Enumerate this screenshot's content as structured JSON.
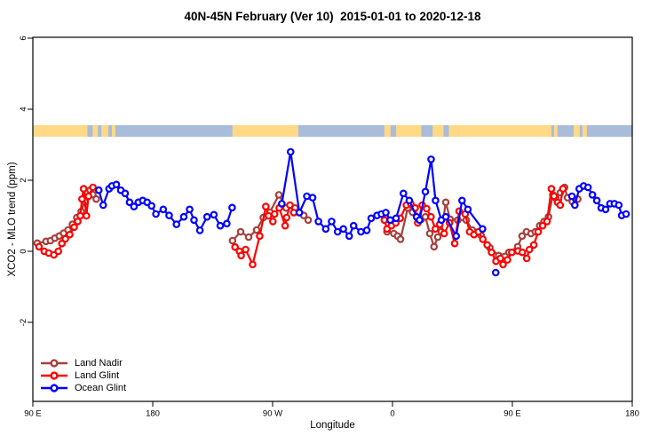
{
  "chart_data": {
    "type": "line",
    "title": "40N-45N February (Ver 10)  2015-01-01 to 2020-12-18",
    "xlabel": "Longitude",
    "ylabel": "XCO2 - MLO trend (ppm)",
    "x_axis": {
      "range_deg": [
        90,
        540
      ],
      "note": "longitude axis wraps eastward starting at 90E",
      "ticks": [
        {
          "pos": 90,
          "label": "90 E"
        },
        {
          "pos": 180,
          "label": "180"
        },
        {
          "pos": 270,
          "label": "90 W"
        },
        {
          "pos": 360,
          "label": "0"
        },
        {
          "pos": 450,
          "label": "90 E"
        },
        {
          "pos": 540,
          "label": "180"
        }
      ]
    },
    "y_axis": {
      "range": [
        -4.2,
        6.0
      ],
      "ticks": [
        {
          "pos": -2,
          "label": "-2"
        },
        {
          "pos": 0,
          "label": "0"
        },
        {
          "pos": 2,
          "label": "2"
        },
        {
          "pos": 4,
          "label": "4"
        },
        {
          "pos": 6,
          "label": "6"
        }
      ]
    },
    "land_ocean_band": {
      "value_center": 3.35,
      "ocean_color": "#A9BCD9",
      "land_color": "#FFD985",
      "land_segments_deg": [
        [
          90,
          131
        ],
        [
          134.9,
          138.8
        ],
        [
          141.5,
          146.7
        ],
        [
          149.4,
          152.0
        ],
        [
          239.8,
          289.3
        ],
        [
          353.9,
          358.5
        ],
        [
          362.7,
          381.6
        ],
        [
          390.1,
          398.3
        ],
        [
          402.3,
          479.3
        ],
        [
          481.3,
          483.9
        ],
        [
          496.0,
          500.6
        ],
        [
          502.6,
          505.9
        ]
      ]
    },
    "series": [
      {
        "name": "Land Nadir",
        "color": "#A5403C",
        "segments": [
          [
            [
              93.3,
              0.23
            ],
            [
              99.9,
              0.28
            ],
            [
              103.2,
              0.3
            ],
            [
              106.5,
              0.37
            ],
            [
              109.8,
              0.43
            ],
            [
              113.1,
              0.51
            ],
            [
              116.4,
              0.6
            ],
            [
              119.7,
              0.76
            ],
            [
              123.0,
              0.95
            ],
            [
              126.3,
              1.12
            ],
            [
              129.0,
              1.4
            ],
            [
              131.0,
              1.65
            ],
            [
              133.0,
              1.72
            ],
            [
              135.0,
              1.6
            ],
            [
              137.6,
              1.47
            ]
          ],
          [
            [
              239.9,
              0.3
            ],
            [
              246.0,
              0.55
            ],
            [
              252.0,
              0.4
            ],
            [
              258.0,
              0.6
            ],
            [
              263.0,
              0.95
            ],
            [
              268.0,
              1.1
            ],
            [
              274.7,
              1.59
            ],
            [
              280.2,
              1.22
            ],
            [
              286.8,
              1.22
            ],
            [
              293.4,
              1.01
            ],
            [
              296.7,
              0.88
            ]
          ],
          [
            [
              355.9,
              0.55
            ],
            [
              361.0,
              0.5
            ],
            [
              363.8,
              0.43
            ],
            [
              366.0,
              0.34
            ],
            [
              371.5,
              1.22
            ],
            [
              375.0,
              1.1
            ],
            [
              378.4,
              0.95
            ],
            [
              381.6,
              0.9
            ],
            [
              384.7,
              0.97
            ],
            [
              388.0,
              0.5
            ],
            [
              391.2,
              0.13
            ],
            [
              394.0,
              0.4
            ],
            [
              396.7,
              0.55
            ],
            [
              400.0,
              1.38
            ],
            [
              403.3,
              0.9
            ],
            [
              409.0,
              0.88
            ],
            [
              415.4,
              0.88
            ],
            [
              419.9,
              0.6
            ],
            [
              426.5,
              0.45
            ],
            [
              433.1,
              0.1
            ],
            [
              439.7,
              -0.12
            ],
            [
              447.4,
              -0.03
            ],
            [
              454.0,
              0.13
            ],
            [
              457.3,
              0.43
            ],
            [
              460.6,
              0.55
            ],
            [
              464.0,
              0.5
            ],
            [
              467.2,
              0.55
            ],
            [
              470.5,
              0.72
            ],
            [
              473.8,
              0.84
            ],
            [
              477.1,
              0.97
            ],
            [
              480.4,
              1.59
            ],
            [
              482.6,
              1.5
            ],
            [
              486.0,
              1.65
            ],
            [
              489.2,
              1.8
            ],
            [
              491.4,
              1.51
            ],
            [
              495.0,
              1.4
            ],
            [
              499.1,
              1.47
            ]
          ]
        ],
        "isolated_points": []
      },
      {
        "name": "Land Glint",
        "color": "#FF0000",
        "segments": [
          [
            [
              94.6,
              0.13
            ],
            [
              98.6,
              0.0
            ],
            [
              101.9,
              -0.05
            ],
            [
              105.8,
              -0.1
            ],
            [
              109.1,
              0.0
            ],
            [
              111.8,
              0.22
            ],
            [
              114.4,
              0.35
            ],
            [
              117.7,
              0.47
            ],
            [
              121.0,
              0.68
            ],
            [
              123.7,
              0.84
            ],
            [
              125.6,
              1.0
            ],
            [
              126.9,
              1.47
            ],
            [
              128.1,
              1.76
            ],
            [
              130.2,
              1.0
            ],
            [
              131.8,
              1.55
            ],
            [
              135.1,
              1.8
            ]
          ],
          [
            [
              241.8,
              0.12
            ],
            [
              245.1,
              0.0
            ],
            [
              246.4,
              -0.12
            ],
            [
              249.7,
              0.05
            ],
            [
              255.0,
              -0.37
            ],
            [
              260.3,
              0.43
            ],
            [
              264.9,
              1.26
            ],
            [
              266.9,
              1.0
            ],
            [
              270.2,
              0.84
            ],
            [
              271.5,
              1.05
            ],
            [
              275.0,
              1.22
            ],
            [
              279.4,
              0.72
            ],
            [
              280.5,
              0.95
            ],
            [
              283.0,
              1.3
            ],
            [
              285.9,
              1.09
            ]
          ],
          [
            [
              353.9,
              0.88
            ],
            [
              355.9,
              0.63
            ],
            [
              359.2,
              0.72
            ],
            [
              362.5,
              0.8
            ],
            [
              365.8,
              0.93
            ],
            [
              370.4,
              1.3
            ],
            [
              373.7,
              1.34
            ],
            [
              377.0,
              1.22
            ],
            [
              379.0,
              0.8
            ],
            [
              382.3,
              1.3
            ],
            [
              385.6,
              1.2
            ],
            [
              388.9,
              0.97
            ],
            [
              392.2,
              0.63
            ],
            [
              395.5,
              0.76
            ],
            [
              398.8,
              0.5
            ],
            [
              402.8,
              0.8
            ],
            [
              406.7,
              0.22
            ],
            [
              410.0,
              1.13
            ],
            [
              414.6,
              1.05
            ],
            [
              417.9,
              0.55
            ],
            [
              421.2,
              0.47
            ],
            [
              424.5,
              0.55
            ],
            [
              427.8,
              0.34
            ],
            [
              431.1,
              0.18
            ],
            [
              434.4,
              -0.03
            ],
            [
              437.7,
              -0.28
            ],
            [
              441.0,
              -0.2
            ],
            [
              443.0,
              -0.37
            ],
            [
              446.3,
              -0.24
            ],
            [
              449.6,
              -0.03
            ],
            [
              454.2,
              0.01
            ],
            [
              457.5,
              -0.03
            ],
            [
              460.8,
              -0.2
            ],
            [
              462.8,
              0.05
            ],
            [
              466.1,
              0.18
            ],
            [
              469.4,
              0.55
            ],
            [
              472.7,
              0.72
            ],
            [
              476.0,
              0.84
            ],
            [
              479.3,
              1.76
            ],
            [
              481.3,
              1.55
            ],
            [
              483.9,
              1.38
            ],
            [
              485.9,
              1.3
            ],
            [
              487.9,
              1.76
            ]
          ]
        ],
        "isolated_points": []
      },
      {
        "name": "Ocean Glint",
        "color": "#0000FF",
        "segments": [
          [
            [
              139.5,
              1.72
            ],
            [
              142.8,
              1.3
            ],
            [
              147.2,
              1.76
            ],
            [
              149.4,
              1.84
            ],
            [
              152.7,
              1.88
            ],
            [
              156.0,
              1.72
            ],
            [
              159.3,
              1.63
            ],
            [
              162.6,
              1.38
            ],
            [
              165.9,
              1.26
            ],
            [
              169.2,
              1.38
            ],
            [
              172.5,
              1.43
            ],
            [
              175.8,
              1.38
            ],
            [
              179.1,
              1.28
            ],
            [
              182.4,
              1.05
            ],
            [
              187.9,
              1.18
            ],
            [
              192.3,
              1.01
            ],
            [
              197.8,
              0.76
            ],
            [
              203.3,
              0.97
            ],
            [
              207.7,
              1.18
            ],
            [
              211.0,
              0.88
            ],
            [
              215.4,
              0.59
            ],
            [
              220.8,
              0.97
            ],
            [
              225.9,
              1.03
            ],
            [
              230.7,
              0.72
            ],
            [
              235.6,
              0.78
            ],
            [
              239.6,
              1.23
            ]
          ],
          [
            [
              276.9,
              1.34
            ],
            [
              283.5,
              2.8
            ],
            [
              290.1,
              1.09
            ],
            [
              295.7,
              1.55
            ],
            [
              300.0,
              1.51
            ],
            [
              304.4,
              0.84
            ],
            [
              309.9,
              0.63
            ],
            [
              314.3,
              0.84
            ],
            [
              318.8,
              0.55
            ],
            [
              323.1,
              0.63
            ],
            [
              327.5,
              0.43
            ],
            [
              330.8,
              0.72
            ],
            [
              336.3,
              0.55
            ],
            [
              340.7,
              0.59
            ],
            [
              344.0,
              0.93
            ],
            [
              348.4,
              1.01
            ],
            [
              351.7,
              1.05
            ],
            [
              355.0,
              1.09
            ],
            [
              358.3,
              0.88
            ],
            [
              362.7,
              0.93
            ],
            [
              368.2,
              1.63
            ],
            [
              372.6,
              1.43
            ],
            [
              378.1,
              0.97
            ],
            [
              380.3,
              0.88
            ],
            [
              384.7,
              1.68
            ],
            [
              389.0,
              2.59
            ],
            [
              392.3,
              1.43
            ],
            [
              396.7,
              0.88
            ],
            [
              400.0,
              0.97
            ],
            [
              407.8,
              0.43
            ],
            [
              412.2,
              1.43
            ],
            [
              416.6,
              1.18
            ],
            [
              427.6,
              0.63
            ]
          ],
          [
            [
              494.7,
              1.55
            ],
            [
              496.9,
              1.3
            ],
            [
              500.2,
              1.76
            ],
            [
              503.5,
              1.84
            ],
            [
              506.8,
              1.8
            ],
            [
              510.1,
              1.59
            ],
            [
              513.4,
              1.43
            ],
            [
              516.7,
              1.22
            ],
            [
              520.0,
              1.18
            ],
            [
              523.3,
              1.34
            ],
            [
              526.6,
              1.34
            ],
            [
              529.9,
              1.3
            ],
            [
              532.1,
              1.01
            ],
            [
              535.4,
              1.05
            ]
          ]
        ],
        "isolated_points": [
          [
            437.5,
            -0.6
          ]
        ]
      }
    ]
  },
  "legend": {
    "items": [
      {
        "label": "Land Nadir",
        "color": "#A5403C"
      },
      {
        "label": "Land Glint",
        "color": "#FF0000"
      },
      {
        "label": "Ocean Glint",
        "color": "#0000FF"
      }
    ]
  }
}
